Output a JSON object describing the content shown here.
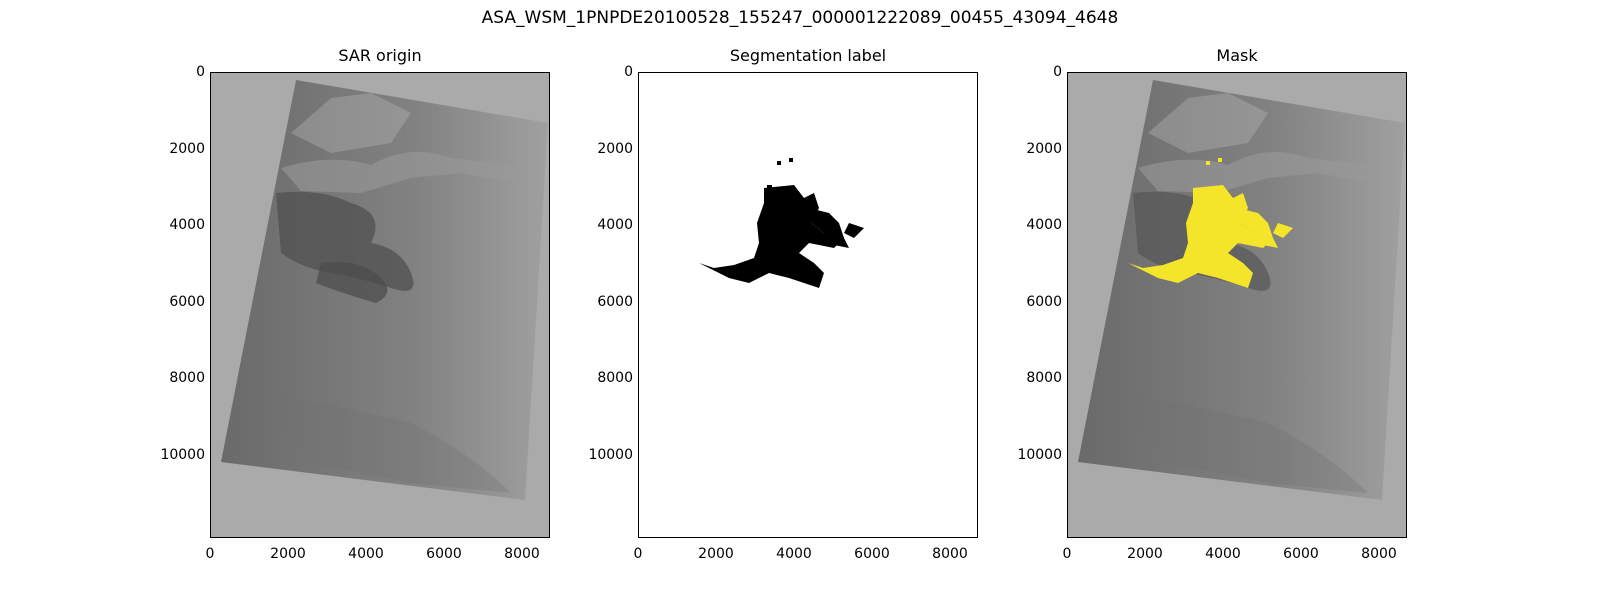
{
  "figure": {
    "suptitle": "ASA_WSM_1PNPDE20100528_155247_000001222089_00455_43094_4648"
  },
  "axes": {
    "y_ticks": [
      "0",
      "2000",
      "4000",
      "6000",
      "8000",
      "10000"
    ],
    "x_ticks": [
      "0",
      "2000",
      "4000",
      "6000",
      "8000"
    ]
  },
  "panels": [
    {
      "title": "SAR origin",
      "kind": "sar"
    },
    {
      "title": "Segmentation label",
      "kind": "label"
    },
    {
      "title": "Mask",
      "kind": "mask"
    }
  ],
  "colors": {
    "background_gray": "#a9a9a9",
    "mask_overlay": "#f5e52a",
    "label_black": "#000000"
  }
}
